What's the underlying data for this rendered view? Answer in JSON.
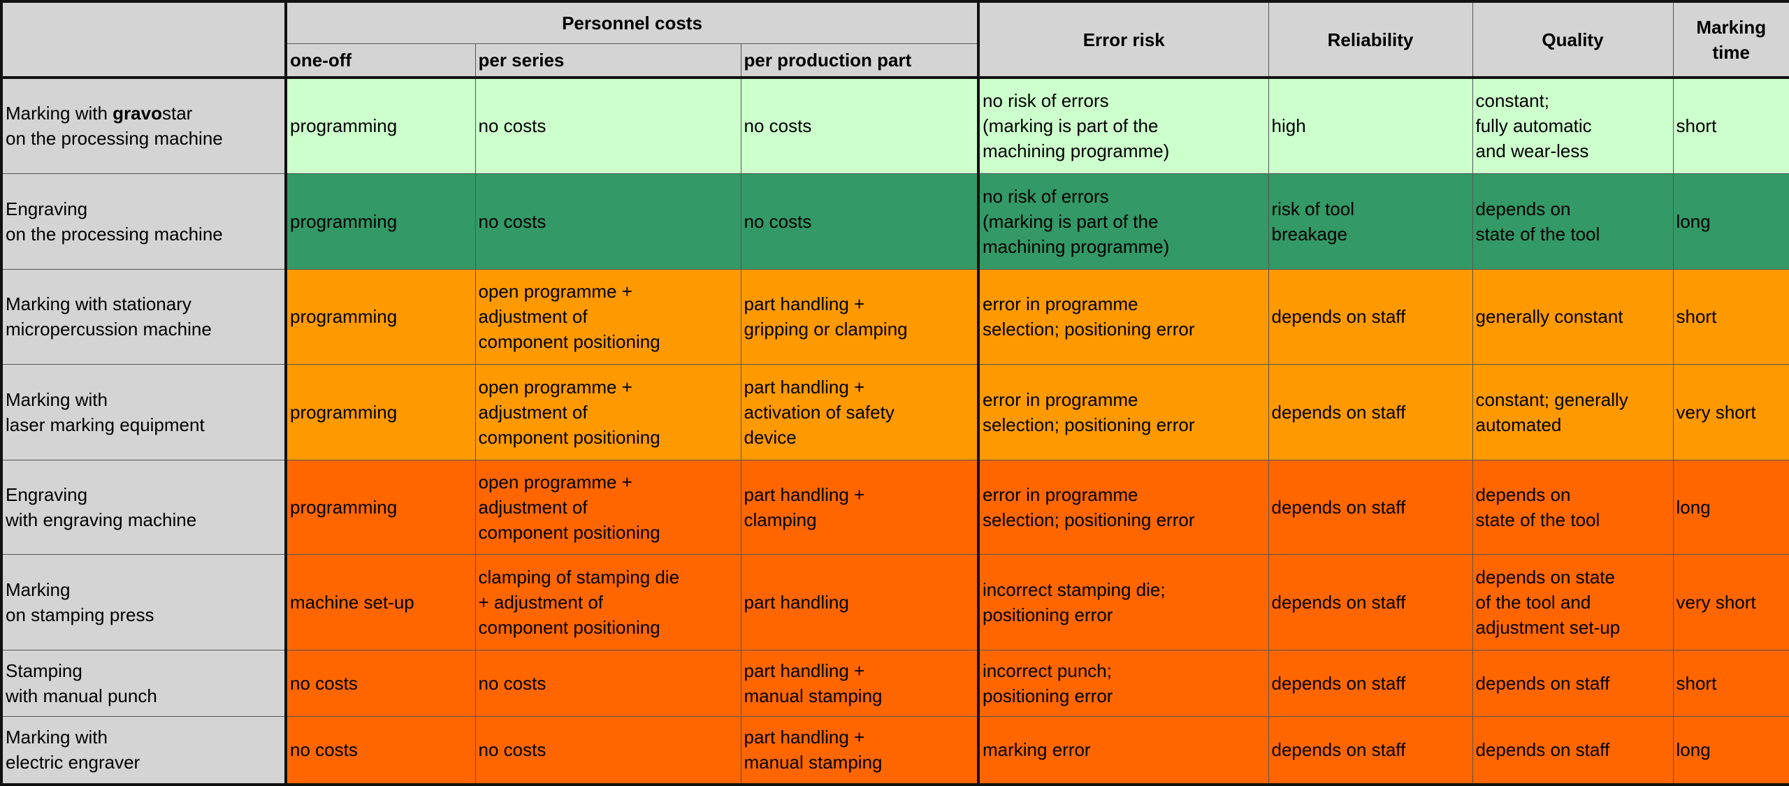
{
  "header": {
    "personnel_costs": "Personnel costs",
    "one_off": "one-off",
    "per_series": "per series",
    "per_part": "per production part",
    "error_risk": "Error risk",
    "reliability": "Reliability",
    "quality": "Quality",
    "marking_time": "Marking\ntime"
  },
  "row_colors": {
    "light_green": "#ccffcc",
    "dark_green": "#339966",
    "orange": "#ff9900",
    "dark_orange": "#ff6600",
    "header_gray": "#d4d4d4"
  },
  "rows": [
    {
      "method_pre": "Marking with ",
      "method_bold": "gravo",
      "method_post": "star\non the processing machine",
      "one_off": "programming",
      "per_series": "no costs",
      "per_part": "no costs",
      "error_risk": "no risk of errors\n(marking is part of the\nmachining programme)",
      "reliability": "high",
      "quality": "constant;\nfully automatic\nand wear-less",
      "time": "short"
    },
    {
      "method": "Engraving\non the processing machine",
      "one_off": "programming",
      "per_series": "no costs",
      "per_part": "no costs",
      "error_risk": "no risk of errors\n(marking is part of the\nmachining programme)",
      "reliability": "risk of tool\nbreakage",
      "quality": "depends on\nstate of the tool",
      "time": "long"
    },
    {
      "method": "Marking with stationary\nmicropercussion machine",
      "one_off": "programming",
      "per_series": "open programme +\nadjustment of\ncomponent positioning",
      "per_part": "part handling +\ngripping or clamping",
      "error_risk": "error in programme\nselection; positioning error",
      "reliability": "depends on staff",
      "quality": "generally constant",
      "time": "short"
    },
    {
      "method": "Marking with\nlaser marking equipment",
      "one_off": "programming",
      "per_series": "open programme +\nadjustment of\ncomponent positioning",
      "per_part": "part handling +\nactivation of safety\ndevice",
      "error_risk": "error in programme\nselection; positioning error",
      "reliability": "depends on staff",
      "quality": "constant; generally\nautomated",
      "time": "very short"
    },
    {
      "method": "Engraving\nwith engraving machine",
      "one_off": "programming",
      "per_series": "open programme +\nadjustment of\ncomponent positioning",
      "per_part": "part handling +\nclamping",
      "error_risk": "error in programme\nselection; positioning error",
      "reliability": "depends on staff",
      "quality": "depends on\nstate of the tool",
      "time": "long"
    },
    {
      "method": "Marking\non stamping press",
      "one_off": "machine set-up",
      "per_series": "clamping of stamping die\n+ adjustment of\ncomponent positioning",
      "per_part": "part handling",
      "error_risk": "incorrect stamping die;\npositioning error",
      "reliability": "depends on staff",
      "quality": "depends on state\nof the tool and\nadjustment set-up",
      "time": "very short"
    },
    {
      "method": "Stamping\nwith manual punch",
      "one_off": "no costs",
      "per_series": "no costs",
      "per_part": "part handling +\nmanual stamping",
      "error_risk": "incorrect punch;\npositioning error",
      "reliability": "depends on staff",
      "quality": "depends on staff",
      "time": "short"
    },
    {
      "method": "Marking with\nelectric engraver",
      "one_off": "no costs",
      "per_series": "no costs",
      "per_part": "part handling +\nmanual stamping",
      "error_risk": "marking error",
      "reliability": "depends on staff",
      "quality": "depends on staff",
      "time": "long"
    }
  ]
}
